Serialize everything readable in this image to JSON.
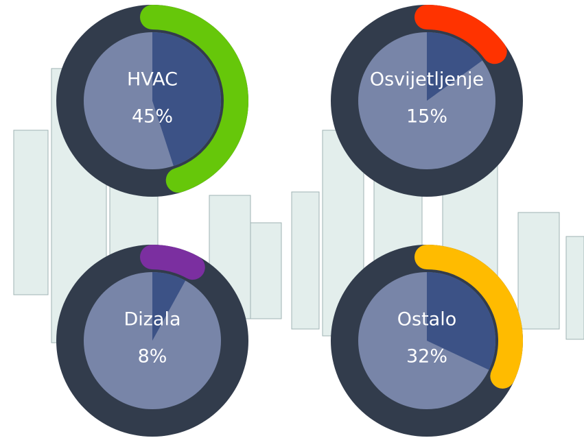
{
  "chart_data": [
    {
      "type": "gauge",
      "title": "HVAC",
      "values": [
        45
      ],
      "value_labels": [
        "45%"
      ],
      "color": "#66c70a"
    },
    {
      "type": "gauge",
      "title": "Osvijetljenje",
      "values": [
        15
      ],
      "value_labels": [
        "15%"
      ],
      "color": "#ff3300"
    },
    {
      "type": "gauge",
      "title": "Dizala",
      "values": [
        8
      ],
      "value_labels": [
        "8%"
      ],
      "color": "#7b2fa0"
    },
    {
      "type": "gauge",
      "title": "Ostalo",
      "values": [
        32
      ],
      "value_labels": [
        "32%"
      ],
      "color": "#ffbb00"
    }
  ]
}
